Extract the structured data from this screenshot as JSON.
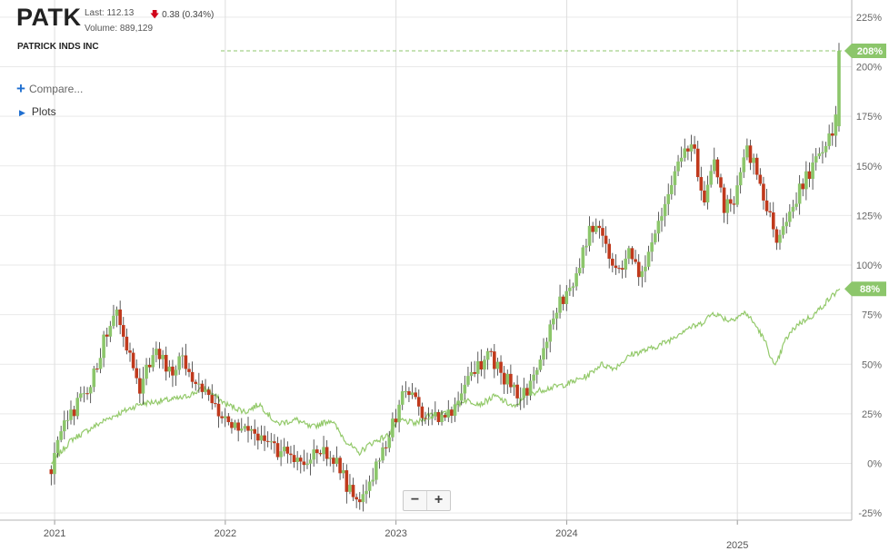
{
  "header": {
    "ticker": "PATK",
    "last": "Last: 112.13",
    "change": "0.38 (0.34%)",
    "volume": "Volume: 889,129",
    "company": "PATRICK INDS INC",
    "compare_label": "Compare...",
    "plots_label": "Plots"
  },
  "zoom": {
    "minus": "−",
    "plus": "+"
  },
  "colors": {
    "up": "#8cc66b",
    "down": "#c0391c",
    "line": "#93c96a",
    "badge": "#8cc66b",
    "grid": "#e9e9e9",
    "change_down": "#d0021b"
  },
  "chart_data": {
    "type": "candlestick",
    "ylim": [
      -27,
      228
    ],
    "yticks": [
      "-25%",
      "0%",
      "25%",
      "50%",
      "75%",
      "100%",
      "125%",
      "150%",
      "175%",
      "200%",
      "225%"
    ],
    "xticks": [
      "2021",
      "2022",
      "2023",
      "2024",
      "2025"
    ],
    "current_label": "208%",
    "benchmark_label": "88%",
    "candle_anchors": [
      [
        2020.98,
        -3
      ],
      [
        2021.05,
        18
      ],
      [
        2021.12,
        28
      ],
      [
        2021.2,
        38
      ],
      [
        2021.28,
        60
      ],
      [
        2021.36,
        75
      ],
      [
        2021.42,
        60
      ],
      [
        2021.5,
        38
      ],
      [
        2021.55,
        50
      ],
      [
        2021.6,
        55
      ],
      [
        2021.68,
        45
      ],
      [
        2021.75,
        55
      ],
      [
        2021.82,
        40
      ],
      [
        2021.92,
        32
      ],
      [
        2022.0,
        22
      ],
      [
        2022.05,
        20
      ],
      [
        2022.12,
        20
      ],
      [
        2022.2,
        12
      ],
      [
        2022.28,
        7
      ],
      [
        2022.36,
        5
      ],
      [
        2022.45,
        0
      ],
      [
        2022.52,
        8
      ],
      [
        2022.62,
        5
      ],
      [
        2022.68,
        -5
      ],
      [
        2022.75,
        -18
      ],
      [
        2022.82,
        -14
      ],
      [
        2022.88,
        -3
      ],
      [
        2022.95,
        12
      ],
      [
        2023.02,
        30
      ],
      [
        2023.08,
        38
      ],
      [
        2023.15,
        24
      ],
      [
        2023.25,
        24
      ],
      [
        2023.32,
        25
      ],
      [
        2023.4,
        40
      ],
      [
        2023.48,
        48
      ],
      [
        2023.55,
        55
      ],
      [
        2023.6,
        48
      ],
      [
        2023.68,
        38
      ],
      [
        2023.75,
        34
      ],
      [
        2023.82,
        45
      ],
      [
        2023.88,
        60
      ],
      [
        2023.95,
        80
      ],
      [
        2024.02,
        85
      ],
      [
        2024.1,
        108
      ],
      [
        2024.15,
        120
      ],
      [
        2024.22,
        112
      ],
      [
        2024.3,
        95
      ],
      [
        2024.36,
        108
      ],
      [
        2024.42,
        95
      ],
      [
        2024.5,
        110
      ],
      [
        2024.58,
        128
      ],
      [
        2024.68,
        160
      ],
      [
        2024.74,
        162
      ],
      [
        2024.8,
        128
      ],
      [
        2024.86,
        152
      ],
      [
        2024.92,
        130
      ],
      [
        2024.98,
        132
      ],
      [
        2025.05,
        160
      ],
      [
        2025.12,
        145
      ],
      [
        2025.18,
        128
      ],
      [
        2025.24,
        112
      ],
      [
        2025.3,
        125
      ],
      [
        2025.38,
        140
      ],
      [
        2025.45,
        152
      ],
      [
        2025.52,
        162
      ],
      [
        2025.57,
        170
      ],
      [
        2025.6,
        208
      ]
    ],
    "benchmark_anchors": [
      [
        2020.98,
        0
      ],
      [
        2021.1,
        12
      ],
      [
        2021.3,
        22
      ],
      [
        2021.5,
        30
      ],
      [
        2021.75,
        33
      ],
      [
        2021.88,
        38
      ],
      [
        2022.0,
        30
      ],
      [
        2022.12,
        26
      ],
      [
        2022.2,
        30
      ],
      [
        2022.3,
        20
      ],
      [
        2022.42,
        22
      ],
      [
        2022.5,
        18
      ],
      [
        2022.62,
        22
      ],
      [
        2022.7,
        12
      ],
      [
        2022.78,
        5
      ],
      [
        2022.85,
        10
      ],
      [
        2022.95,
        14
      ],
      [
        2023.02,
        22
      ],
      [
        2023.12,
        20
      ],
      [
        2023.2,
        25
      ],
      [
        2023.3,
        25
      ],
      [
        2023.4,
        32
      ],
      [
        2023.5,
        30
      ],
      [
        2023.58,
        34
      ],
      [
        2023.7,
        28
      ],
      [
        2023.75,
        34
      ],
      [
        2023.85,
        37
      ],
      [
        2024.0,
        40
      ],
      [
        2024.12,
        44
      ],
      [
        2024.2,
        50
      ],
      [
        2024.28,
        48
      ],
      [
        2024.38,
        55
      ],
      [
        2024.5,
        58
      ],
      [
        2024.6,
        62
      ],
      [
        2024.7,
        68
      ],
      [
        2024.78,
        70
      ],
      [
        2024.86,
        76
      ],
      [
        2024.95,
        72
      ],
      [
        2025.05,
        76
      ],
      [
        2025.12,
        68
      ],
      [
        2025.17,
        60
      ],
      [
        2025.22,
        48
      ],
      [
        2025.28,
        62
      ],
      [
        2025.35,
        70
      ],
      [
        2025.45,
        75
      ],
      [
        2025.55,
        84
      ],
      [
        2025.6,
        88
      ]
    ]
  }
}
